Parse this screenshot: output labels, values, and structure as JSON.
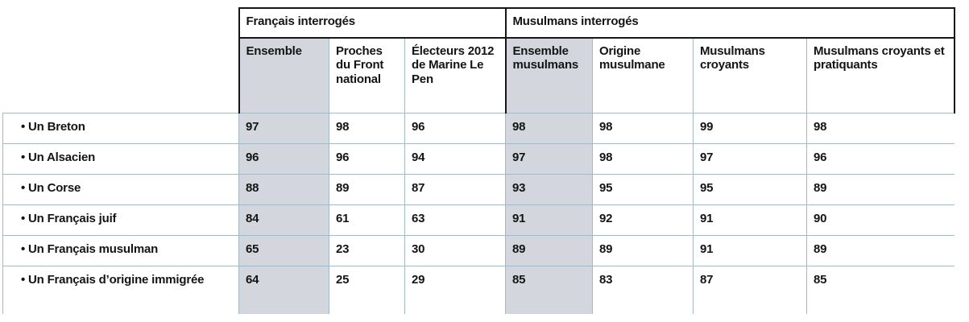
{
  "colors": {
    "shaded_column_bg": "#d3d7dd",
    "grid_line": "#a4b9c7",
    "group_border": "#161616",
    "text": "#141414",
    "page_bg": "#ffffff"
  },
  "chart_data": {
    "type": "table",
    "column_groups": [
      {
        "label": "Français interrogés",
        "span": 3
      },
      {
        "label": "Musulmans interrogés",
        "span": 4
      }
    ],
    "columns": [
      "Ensemble",
      "Proches du Front national",
      "Électeurs 2012 de Marine Le Pen",
      "Ensemble musulmans",
      "Origine musulmane",
      "Musulmans croyants",
      "Musulmans croyants et pratiquants"
    ],
    "shaded_columns": [
      0,
      3
    ],
    "row_bullet": "•",
    "rows": [
      {
        "label": "Un Breton",
        "values": [
          97,
          98,
          96,
          98,
          98,
          99,
          98
        ]
      },
      {
        "label": "Un Alsacien",
        "values": [
          96,
          96,
          94,
          97,
          98,
          97,
          96
        ]
      },
      {
        "label": "Un Corse",
        "values": [
          88,
          89,
          87,
          93,
          95,
          95,
          89
        ]
      },
      {
        "label": "Un Français juif",
        "values": [
          84,
          61,
          63,
          91,
          92,
          91,
          90
        ]
      },
      {
        "label": "Un Français musulman",
        "values": [
          65,
          23,
          30,
          89,
          89,
          91,
          89
        ]
      },
      {
        "label": "Un Français d’origine immigrée",
        "values": [
          64,
          25,
          29,
          85,
          83,
          87,
          85
        ]
      }
    ]
  }
}
